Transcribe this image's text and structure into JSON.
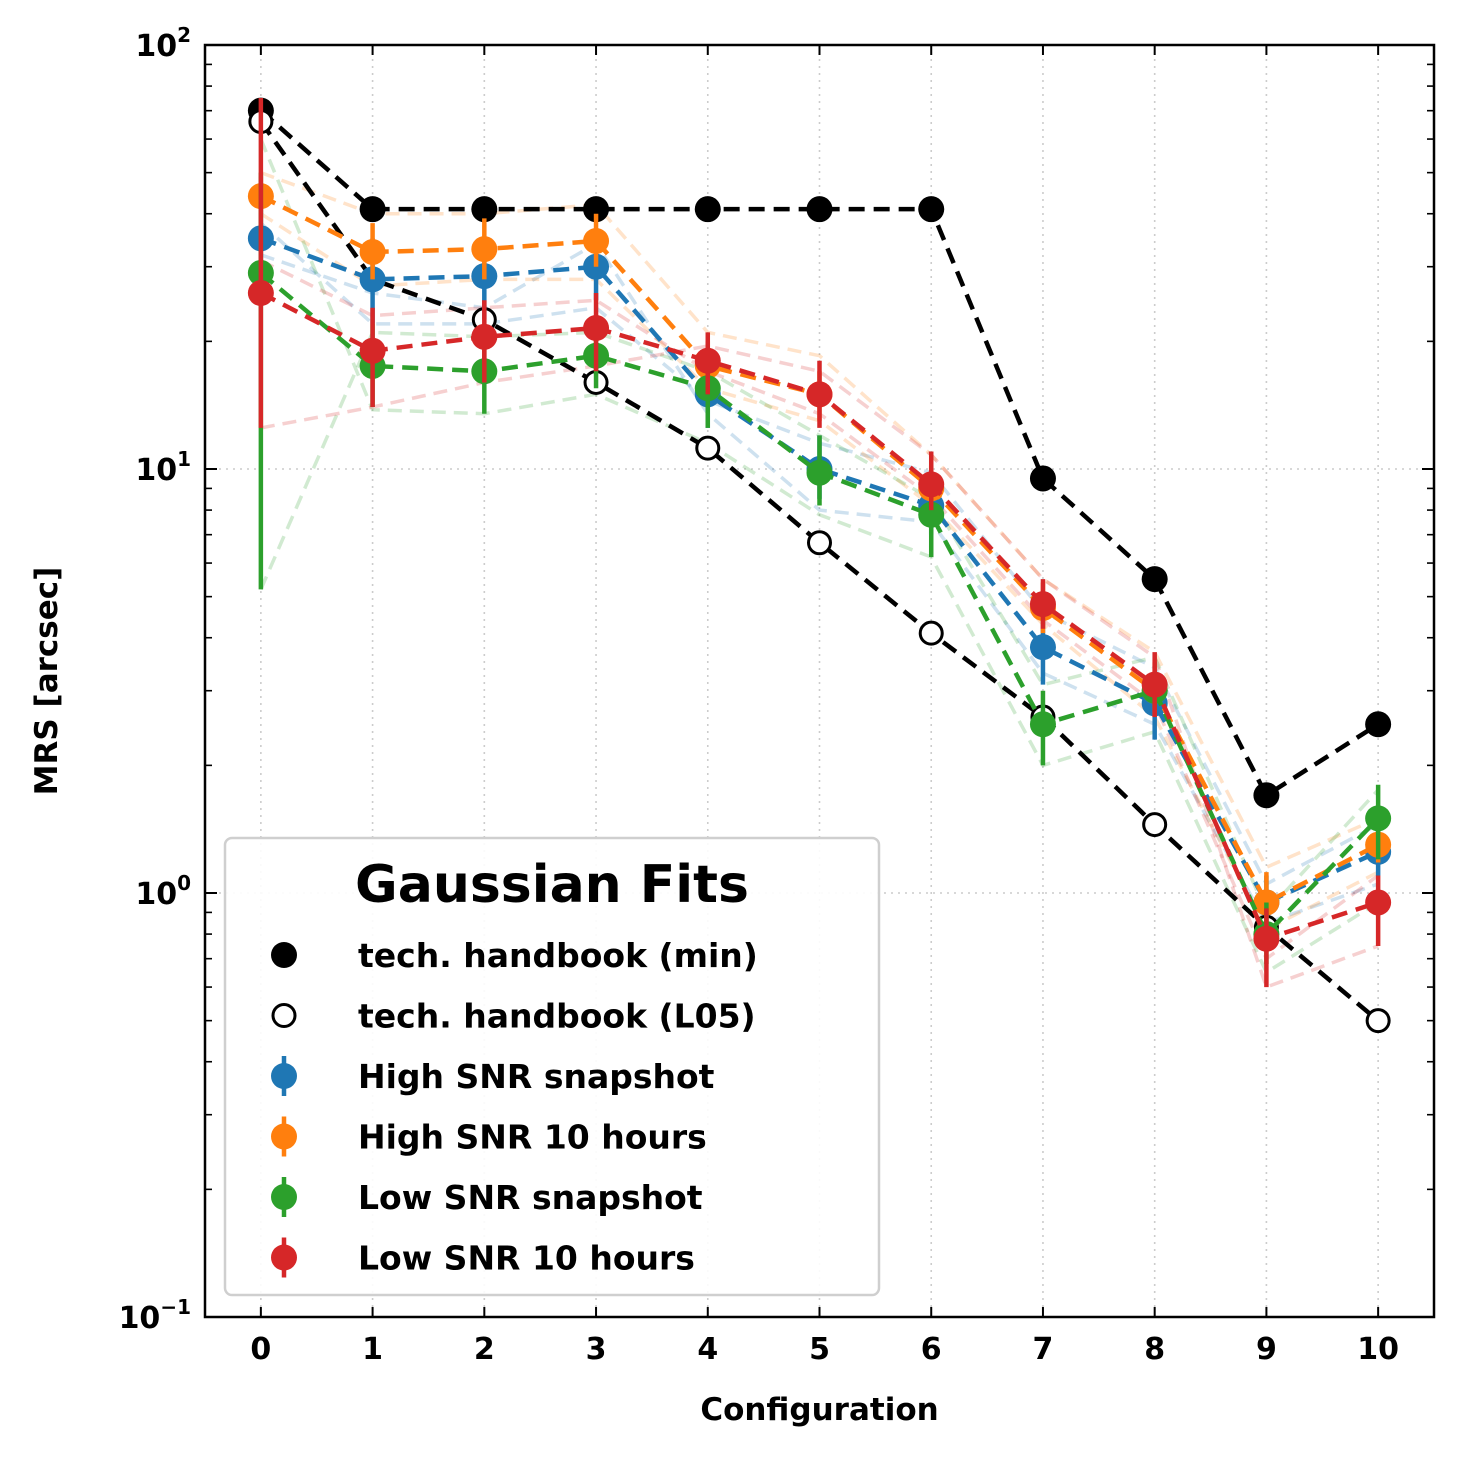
{
  "chart_data": {
    "type": "line",
    "xlabel": "Configuration",
    "ylabel": "MRS [arcsec]",
    "yscale": "log",
    "ylim": [
      0.1,
      100
    ],
    "xlim": [
      -0.5,
      10.5
    ],
    "xticks": [
      "0",
      "1",
      "2",
      "3",
      "4",
      "5",
      "6",
      "7",
      "8",
      "9",
      "10"
    ],
    "ytick_labels": [
      {
        "value": 100,
        "base": "10",
        "exp": "2"
      },
      {
        "value": 10,
        "base": "10",
        "exp": "1"
      },
      {
        "value": 1,
        "base": "10",
        "exp": "0"
      },
      {
        "value": 0.1,
        "base": "10",
        "exp": "−1"
      }
    ],
    "grid": true,
    "legend": {
      "title": "Gaussian Fits",
      "placement": "lower-left"
    },
    "x": [
      0,
      1,
      2,
      3,
      4,
      5,
      6,
      7,
      8,
      9,
      10
    ],
    "series": [
      {
        "name": "tech. handbook (min)",
        "color": "#000000",
        "marker": "filled",
        "values": [
          70,
          41,
          41,
          41,
          41,
          41,
          41,
          9.5,
          5.5,
          1.7,
          2.5
        ]
      },
      {
        "name": "tech. handbook (L05)",
        "color": "#000000",
        "marker": "open",
        "values": [
          66,
          28,
          22.5,
          16,
          11.2,
          6.7,
          4.1,
          2.6,
          1.45,
          0.83,
          0.5
        ]
      },
      {
        "name": "High SNR snapshot",
        "color": "#1f77b4",
        "marker": "filled",
        "values": [
          35,
          28,
          28.5,
          30,
          15,
          10,
          8.2,
          3.8,
          2.8,
          0.95,
          1.25
        ],
        "err_low": [
          30,
          22,
          22.5,
          25,
          12.5,
          8.5,
          7,
          3.1,
          2.3,
          0.82,
          1.1
        ],
        "err_high": [
          42,
          35,
          34,
          36,
          18,
          12,
          9.5,
          4.5,
          3.3,
          1.1,
          1.4
        ],
        "faint": [
          [
            38,
            22,
            22,
            24,
            14.5,
            11.5,
            9.8,
            4.6,
            3.4,
            1.05,
            1.45
          ],
          [
            32,
            26,
            24,
            34,
            13.5,
            8,
            7.5,
            3.3,
            2.5,
            0.85,
            1.05
          ]
        ]
      },
      {
        "name": "High SNR 10 hours",
        "color": "#ff7f0e",
        "marker": "filled",
        "values": [
          44,
          32.5,
          33,
          34.5,
          17.5,
          15,
          9,
          4.7,
          3,
          0.95,
          1.3
        ],
        "err_low": [
          40,
          28,
          28,
          30,
          15.5,
          13,
          8,
          4.1,
          2.6,
          0.85,
          1.18
        ],
        "err_high": [
          49,
          38,
          39,
          40,
          20,
          17,
          10.2,
          5.4,
          3.5,
          1.12,
          1.45
        ],
        "faint": [
          [
            50,
            40,
            40,
            42,
            21,
            18.5,
            10.8,
            5.5,
            3.7,
            1.15,
            1.5
          ],
          [
            40,
            27,
            28,
            28,
            15.5,
            13,
            8.2,
            4.3,
            2.6,
            0.82,
            1.12
          ]
        ]
      },
      {
        "name": "Low SNR snapshot",
        "color": "#2ca02c",
        "marker": "filled",
        "values": [
          29,
          17.5,
          17,
          18.5,
          15.5,
          9.8,
          7.8,
          2.5,
          3,
          0.8,
          1.5
        ],
        "err_low": [
          5.2,
          14,
          13.5,
          15.5,
          12.5,
          8.2,
          6.2,
          2,
          2.7,
          0.68,
          1.2
        ],
        "err_high": [
          50,
          22,
          21,
          22,
          18,
          12,
          9,
          3,
          3.3,
          0.95,
          1.8
        ],
        "faint": [
          [
            60,
            13.8,
            13.5,
            15,
            11.5,
            7.8,
            6.2,
            2,
            2.4,
            0.65,
            0.95
          ],
          [
            5.2,
            21,
            20.5,
            21,
            17,
            12,
            8.5,
            3.1,
            3.6,
            0.9,
            1.75
          ]
        ]
      },
      {
        "name": "Low SNR 10 hours",
        "color": "#d62728",
        "marker": "filled",
        "values": [
          26,
          19,
          20.5,
          21.5,
          18,
          15,
          9.2,
          4.8,
          3.1,
          0.78,
          0.95
        ],
        "err_low": [
          12.5,
          14,
          16,
          17,
          15,
          12.5,
          8,
          4.2,
          2.6,
          0.6,
          0.75
        ],
        "err_high": [
          75,
          24,
          25,
          26,
          21,
          18,
          11,
          5.5,
          3.7,
          0.92,
          1.1
        ],
        "faint": [
          [
            12.5,
            14,
            16,
            17.5,
            19.5,
            17,
            10.8,
            5.5,
            3.6,
            0.6,
            0.75
          ],
          [
            31,
            23,
            24,
            25,
            17,
            13.5,
            8.6,
            4.4,
            2.8,
            0.7,
            1.1
          ]
        ]
      }
    ]
  }
}
